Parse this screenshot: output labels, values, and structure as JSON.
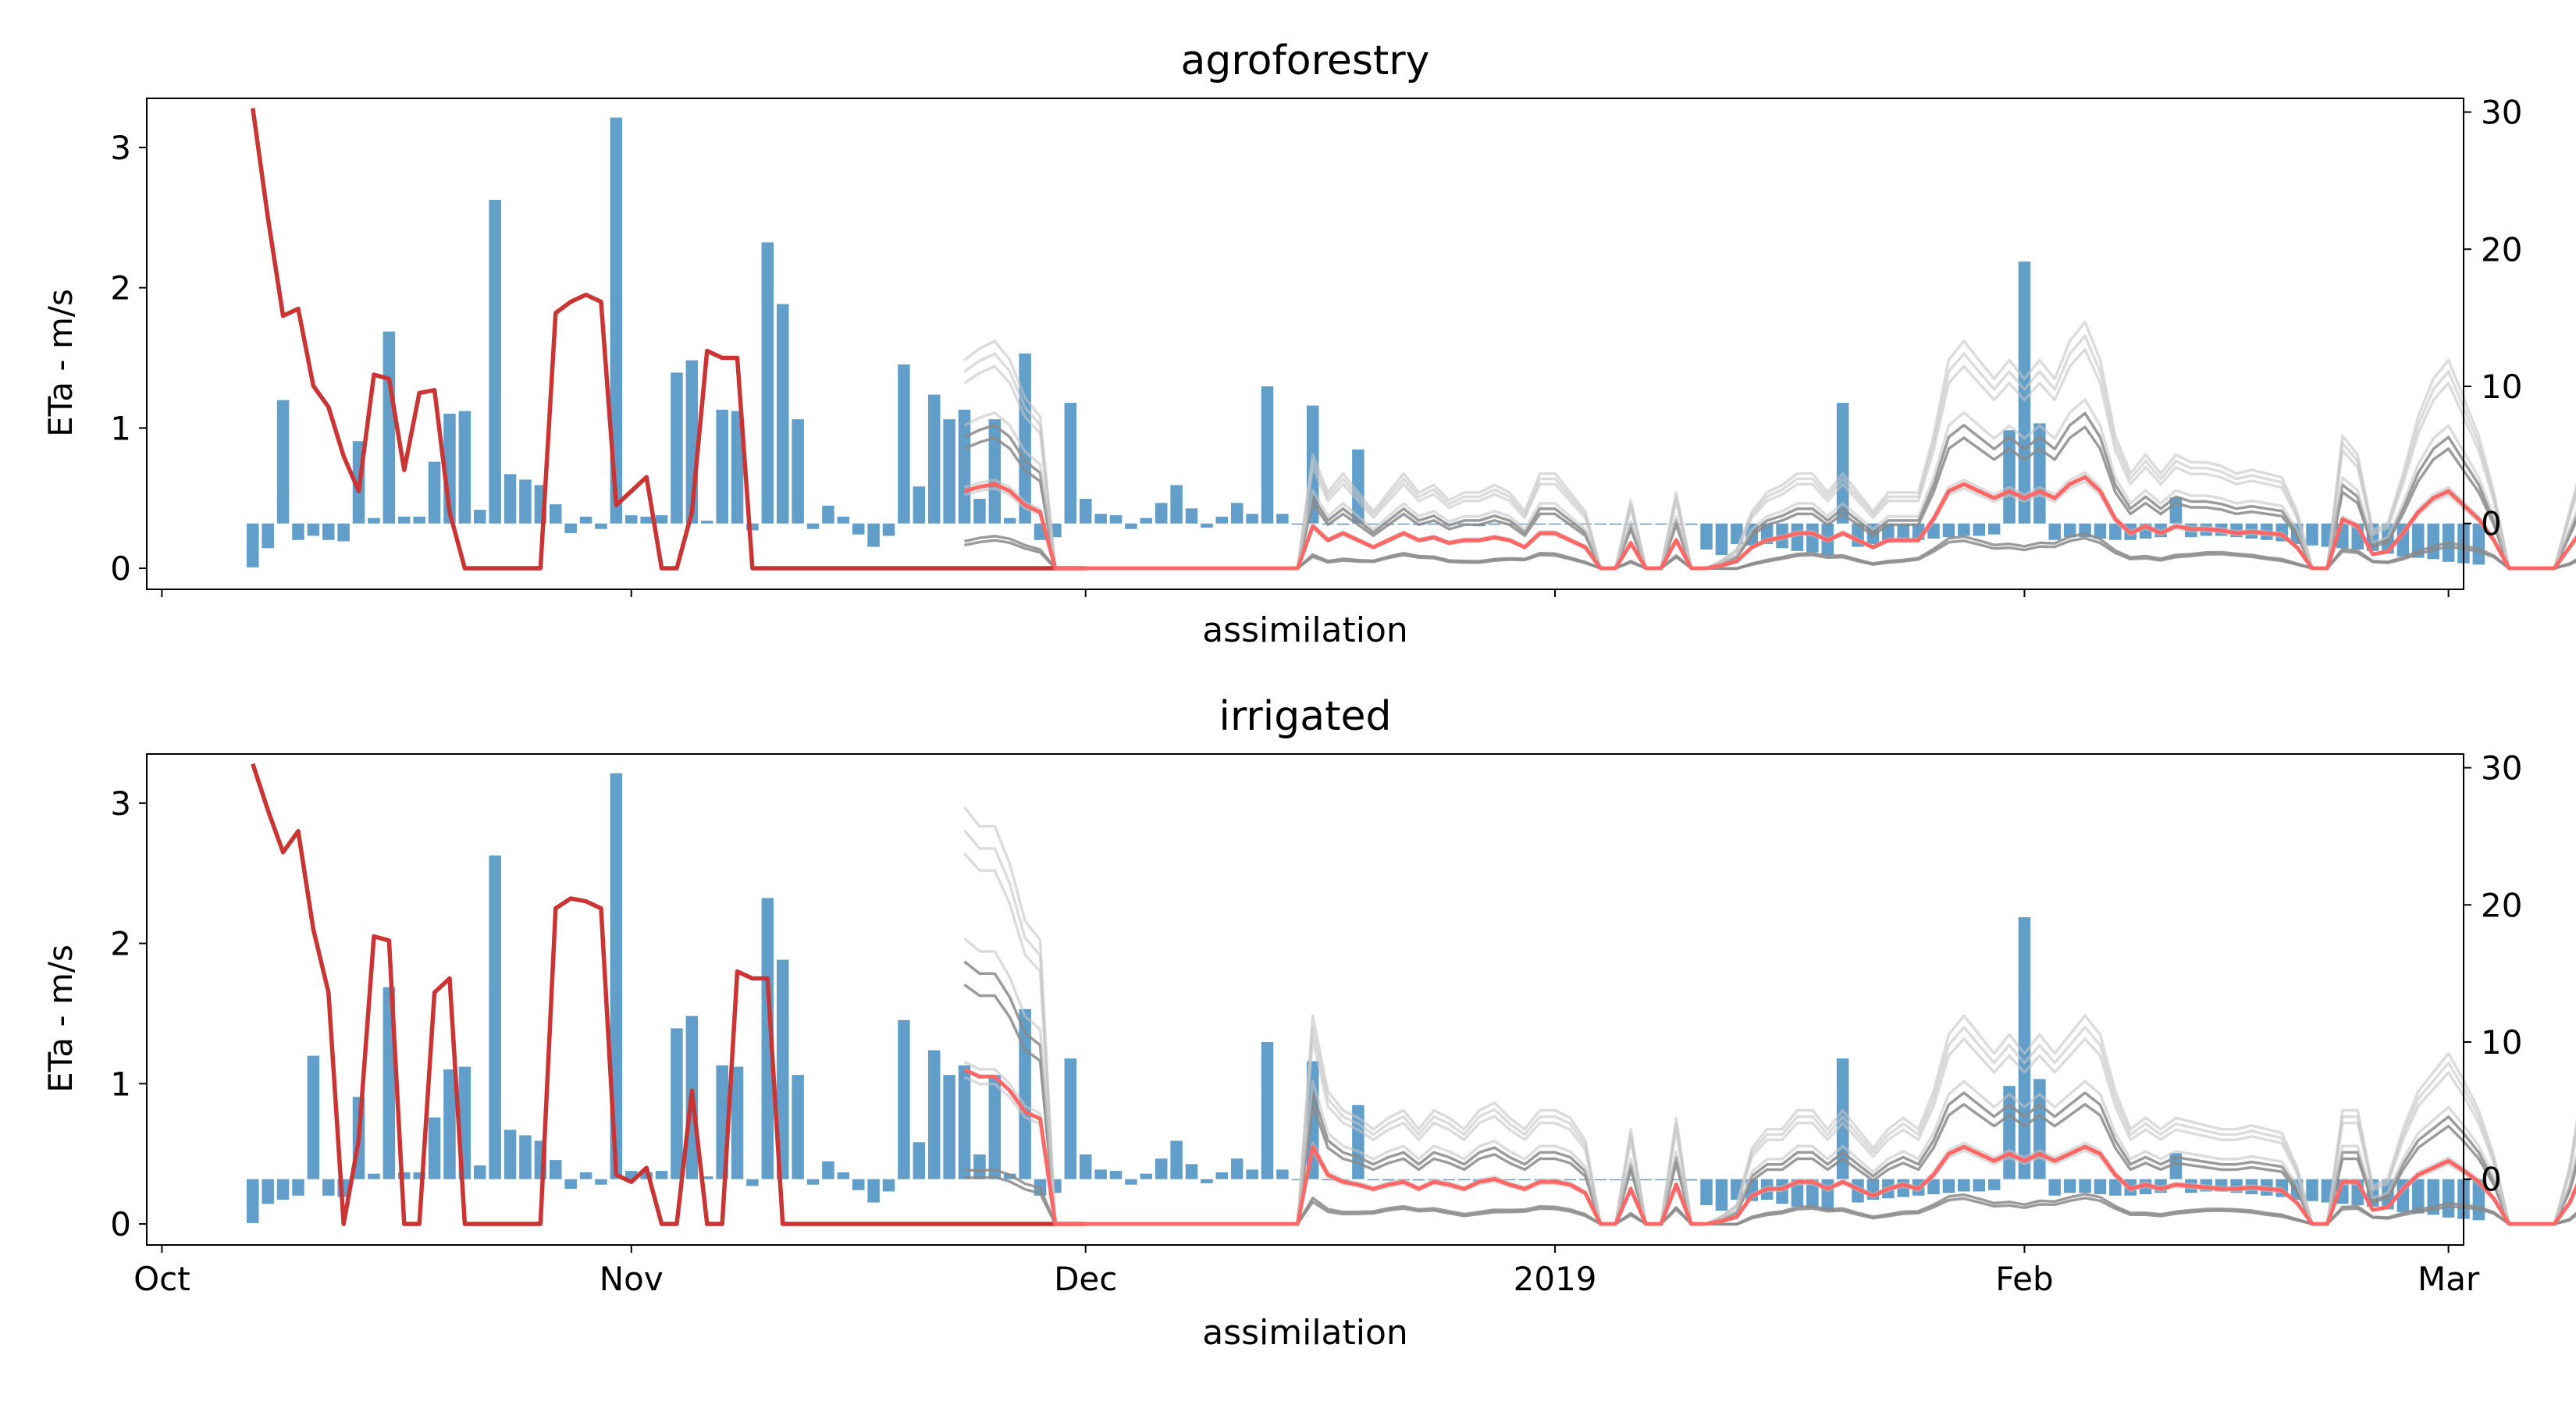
{
  "figure": {
    "background": "#ffffff"
  },
  "chart_data": [
    {
      "type": "line",
      "title": "agroforestry",
      "xlabel": "assimilation",
      "ylabel": "ETa - m/s",
      "ylim": [
        -0.15,
        3.35
      ],
      "yticks": [
        0,
        1,
        2,
        3
      ],
      "y2lim": [
        -4.8,
        31
      ],
      "y2ticks": [
        0,
        10,
        20,
        30
      ],
      "xlim": [
        "2018-09-30",
        "2019-03-02"
      ],
      "xticks": [
        {
          "date": "2018-10-01",
          "label": "Oct"
        },
        {
          "date": "2018-11-01",
          "label": "Nov"
        },
        {
          "date": "2018-12-01",
          "label": "Dec"
        },
        {
          "date": "2019-01-01",
          "label": "2019"
        },
        {
          "date": "2019-02-01",
          "label": "Feb"
        },
        {
          "date": "2019-03-01",
          "label": "Mar"
        }
      ],
      "show_xticklabels": false,
      "bar_color": "#1f77b4",
      "bar_opacity": 0.7,
      "bars": {
        "start": "2018-10-07",
        "values": [
          -3.2,
          -1.8,
          -1.5,
          -1.2,
          -0.9,
          -1.2,
          -1.3,
          -1.1,
          0.4,
          -1.0,
          -1.1,
          0.5,
          -0.2,
          -0.4,
          0.4,
          1.0,
          2.4,
          3.6,
          3.2,
          2.8,
          1.4,
          -0.7,
          0.5,
          -0.4,
          -0.3,
          0.6,
          0.5,
          0.6,
          -0.2,
          -0.4,
          0.2,
          0.0,
          -0.4,
          -0.5,
          -1.6,
          -0.2,
          -0.2,
          -0.4,
          1.3,
          0.5,
          -0.8,
          -1.7,
          -0.9,
          0.6,
          2.2,
          0.5,
          0.0,
          0.4,
          1.8,
          1.0,
          0.4,
          -1.4,
          -1.2,
          -1.0,
          2.3,
          1.8,
          0.7,
          0.6,
          -0.4,
          0.4,
          1.5,
          2.8,
          1.1,
          -0.3,
          0.5,
          1.5,
          0.7,
          1.4,
          0.7,
          0.0,
          -0.1,
          0.0,
          -0.1,
          0.0,
          0.0,
          -0.1,
          0.0,
          -0.1,
          0.0,
          0.0,
          0.0,
          -0.2,
          -0.1,
          0.0,
          0.0,
          0.0,
          0.0,
          0.0,
          0.0,
          0.0,
          0.0,
          -0.1,
          0.0,
          0.0,
          0.0,
          -0.1,
          -1.9,
          -2.3,
          -1.5,
          -1.6,
          -1.5,
          -1.8,
          -2.0,
          -2.1,
          -2.3,
          -2.0,
          -1.7,
          -1.5,
          -1.4,
          -1.3,
          -1.2,
          -1.1,
          -1.0,
          -0.9,
          -0.9,
          -0.8,
          -1.0,
          -1.2,
          -1.4,
          -1.2,
          -1.0,
          -1.0,
          -1.1,
          -1.2,
          -1.2,
          -1.1,
          -1.0,
          -1.0,
          -1.0,
          -0.9,
          -0.9,
          -1.0,
          -1.1,
          -1.2,
          -1.3,
          -1.5,
          -1.6,
          -1.7,
          -1.8,
          -1.9,
          -2.0,
          -2.2,
          -2.4,
          -2.5,
          -2.6,
          -2.8,
          -2.9,
          -3.0
        ]
      },
      "bar_overrides": [
        {
          "date": "2018-10-09",
          "value": 9.0
        },
        {
          "date": "2018-10-14",
          "value": 6.0
        },
        {
          "date": "2018-10-16",
          "value": 14.0
        },
        {
          "date": "2018-10-17",
          "value": 0.5
        },
        {
          "date": "2018-10-19",
          "value": 4.5
        },
        {
          "date": "2018-10-20",
          "value": 8.0
        },
        {
          "date": "2018-10-21",
          "value": 8.2
        },
        {
          "date": "2018-10-23",
          "value": 23.6
        },
        {
          "date": "2018-10-31",
          "value": 29.6
        },
        {
          "date": "2018-11-04",
          "value": 11.0
        },
        {
          "date": "2018-11-05",
          "value": 11.9
        },
        {
          "date": "2018-11-07",
          "value": 8.3
        },
        {
          "date": "2018-11-08",
          "value": 8.2
        },
        {
          "date": "2018-11-10",
          "value": 20.5
        },
        {
          "date": "2018-11-11",
          "value": 16.0
        },
        {
          "date": "2018-11-12",
          "value": 7.6
        },
        {
          "date": "2018-11-19",
          "value": 11.6
        },
        {
          "date": "2018-11-20",
          "value": 2.7
        },
        {
          "date": "2018-11-21",
          "value": 9.4
        },
        {
          "date": "2018-11-22",
          "value": 7.6
        },
        {
          "date": "2018-11-23",
          "value": 8.3
        },
        {
          "date": "2018-11-25",
          "value": 7.6
        },
        {
          "date": "2018-11-27",
          "value": 12.4
        },
        {
          "date": "2018-11-30",
          "value": 8.8
        },
        {
          "date": "2018-12-13",
          "value": 10.0
        },
        {
          "date": "2018-12-16",
          "value": 8.6
        },
        {
          "date": "2018-12-19",
          "value": 5.4
        },
        {
          "date": "2019-01-20",
          "value": 8.8
        },
        {
          "date": "2019-01-31",
          "value": 6.8
        },
        {
          "date": "2019-02-01",
          "value": 19.1
        },
        {
          "date": "2019-02-02",
          "value": 7.3
        },
        {
          "date": "2019-02-11",
          "value": 1.9
        }
      ],
      "series": [
        {
          "name": "",
          "color": "#cc3333",
          "start": "2018-10-07",
          "values": [
            3.28,
            2.5,
            1.8,
            1.85,
            1.3,
            1.15,
            0.8,
            0.55,
            1.38,
            1.35,
            0.7,
            1.25,
            1.27,
            0.4,
            0.0,
            0.0,
            0.0,
            0.0,
            0.0,
            0.0,
            1.82,
            1.9,
            1.95,
            1.9,
            0.45,
            0.55,
            0.65,
            0.0,
            0.0,
            0.4,
            1.55,
            1.5,
            1.5,
            0.0,
            0.0,
            0.0,
            0.0,
            0.0,
            0.0,
            0.0,
            0.0,
            0.0,
            0.0,
            0.0,
            0.0,
            0.0,
            0.0,
            0.0,
            0.0,
            0.0,
            0.0,
            0.0,
            0.0,
            0.0,
            0.0,
            0.0
          ]
        },
        {
          "name": "",
          "color": "#ff6666",
          "start": "2018-11-23",
          "values": [
            0.55,
            0.58,
            0.6,
            0.55,
            0.45,
            0.4,
            0.0,
            0.0,
            0.0,
            0.0,
            0.0,
            0.0,
            0.0,
            0.0,
            0.0,
            0.0,
            0.0,
            0.0,
            0.0,
            0.0,
            0.0,
            0.0,
            0.0,
            0.3,
            0.2,
            0.25,
            0.2,
            0.15,
            0.2,
            0.25,
            0.2,
            0.22,
            0.18,
            0.2,
            0.2,
            0.22,
            0.2,
            0.15,
            0.25,
            0.25,
            0.2,
            0.15,
            0.0,
            0.0,
            0.18,
            0.0,
            0.0,
            0.2,
            0.0,
            0.0,
            0.02,
            0.05,
            0.15,
            0.2,
            0.22,
            0.25,
            0.25,
            0.2,
            0.25,
            0.2,
            0.15,
            0.2,
            0.2,
            0.2,
            0.35,
            0.55,
            0.6,
            0.55,
            0.5,
            0.55,
            0.5,
            0.55,
            0.5,
            0.6,
            0.65,
            0.55,
            0.35,
            0.25,
            0.3,
            0.25,
            0.3,
            0.28,
            0.28,
            0.27,
            0.25,
            0.26,
            0.25,
            0.24,
            0.15,
            0.0,
            0.0,
            0.35,
            0.3,
            0.1,
            0.12,
            0.25,
            0.4,
            0.5,
            0.55,
            0.45,
            0.35,
            0.2,
            0.0,
            0.0,
            0.0,
            0.0,
            0.15,
            0.3,
            0.35,
            0.35,
            0.33,
            0.35,
            0.34,
            0.33,
            0.0,
            0.28,
            0.42,
            0.4,
            0.4,
            0.42,
            0.43,
            0.42,
            0.4,
            0.35,
            0.1,
            0.3,
            0.5,
            0.55,
            0.5,
            0.6,
            0.68
          ]
        }
      ]
    },
    {
      "type": "line",
      "title": "irrigated",
      "xlabel": "assimilation",
      "ylabel": "ETa - m/s",
      "ylim": [
        -0.15,
        3.35
      ],
      "yticks": [
        0,
        1,
        2,
        3
      ],
      "y2lim": [
        -4.8,
        31
      ],
      "y2ticks": [
        0,
        10,
        20,
        30
      ],
      "xlim": [
        "2018-09-30",
        "2019-03-02"
      ],
      "xticks": [
        {
          "date": "2018-10-01",
          "label": "Oct"
        },
        {
          "date": "2018-11-01",
          "label": "Nov"
        },
        {
          "date": "2018-12-01",
          "label": "Dec"
        },
        {
          "date": "2019-01-01",
          "label": "2019"
        },
        {
          "date": "2019-02-01",
          "label": "Feb"
        },
        {
          "date": "2019-03-01",
          "label": "Mar"
        }
      ],
      "show_xticklabels": true,
      "bar_color": "#1f77b4",
      "bar_opacity": 0.7,
      "bars": {
        "start": "2018-10-07",
        "values": [
          -3.2,
          -1.8,
          -1.5,
          -1.2,
          -0.9,
          -1.2,
          -1.3,
          -1.1,
          0.4,
          -1.0,
          -1.1,
          0.5,
          -0.2,
          -0.4,
          0.4,
          1.0,
          2.4,
          3.6,
          3.2,
          2.8,
          1.4,
          -0.7,
          0.5,
          -0.4,
          -0.3,
          0.6,
          0.5,
          0.6,
          -0.2,
          -0.4,
          0.2,
          0.0,
          -0.4,
          -0.5,
          -1.6,
          -0.2,
          -0.2,
          -0.4,
          1.3,
          0.5,
          -0.8,
          -1.7,
          -0.9,
          0.6,
          2.2,
          0.5,
          0.0,
          0.4,
          1.8,
          1.0,
          0.4,
          -1.4,
          -1.2,
          -1.0,
          2.3,
          1.8,
          0.7,
          0.6,
          -0.4,
          0.4,
          1.5,
          2.8,
          1.1,
          -0.3,
          0.5,
          1.5,
          0.7,
          1.4,
          0.7,
          0.0,
          -0.1,
          0.0,
          -0.1,
          0.0,
          0.0,
          -0.1,
          0.0,
          -0.1,
          0.0,
          0.0,
          0.0,
          -0.2,
          -0.1,
          0.0,
          0.0,
          0.0,
          0.0,
          0.0,
          0.0,
          0.0,
          0.0,
          -0.1,
          0.0,
          0.0,
          0.0,
          -0.1,
          -1.9,
          -2.3,
          -1.5,
          -1.6,
          -1.5,
          -1.8,
          -2.0,
          -2.1,
          -2.3,
          -2.0,
          -1.7,
          -1.5,
          -1.4,
          -1.3,
          -1.2,
          -1.1,
          -1.0,
          -0.9,
          -0.9,
          -0.8,
          -1.0,
          -1.2,
          -1.4,
          -1.2,
          -1.0,
          -1.0,
          -1.1,
          -1.2,
          -1.2,
          -1.1,
          -1.0,
          -1.0,
          -1.0,
          -0.9,
          -0.9,
          -1.0,
          -1.1,
          -1.2,
          -1.3,
          -1.5,
          -1.6,
          -1.7,
          -1.8,
          -1.9,
          -2.0,
          -2.2,
          -2.4,
          -2.5,
          -2.6,
          -2.8,
          -2.9,
          -3.0
        ]
      },
      "bar_overrides": [
        {
          "date": "2018-10-11",
          "value": 9.0
        },
        {
          "date": "2018-10-14",
          "value": 6.0
        },
        {
          "date": "2018-10-16",
          "value": 14.0
        },
        {
          "date": "2018-10-17",
          "value": 0.5
        },
        {
          "date": "2018-10-19",
          "value": 4.5
        },
        {
          "date": "2018-10-20",
          "value": 8.0
        },
        {
          "date": "2018-10-21",
          "value": 8.2
        },
        {
          "date": "2018-10-23",
          "value": 23.6
        },
        {
          "date": "2018-10-31",
          "value": 29.6
        },
        {
          "date": "2018-11-04",
          "value": 11.0
        },
        {
          "date": "2018-11-05",
          "value": 11.9
        },
        {
          "date": "2018-11-07",
          "value": 8.3
        },
        {
          "date": "2018-11-08",
          "value": 8.2
        },
        {
          "date": "2018-11-10",
          "value": 20.5
        },
        {
          "date": "2018-11-11",
          "value": 16.0
        },
        {
          "date": "2018-11-12",
          "value": 7.6
        },
        {
          "date": "2018-11-19",
          "value": 11.6
        },
        {
          "date": "2018-11-20",
          "value": 2.7
        },
        {
          "date": "2018-11-21",
          "value": 9.4
        },
        {
          "date": "2018-11-22",
          "value": 7.6
        },
        {
          "date": "2018-11-23",
          "value": 8.3
        },
        {
          "date": "2018-11-25",
          "value": 7.6
        },
        {
          "date": "2018-11-27",
          "value": 12.4
        },
        {
          "date": "2018-11-30",
          "value": 8.8
        },
        {
          "date": "2018-12-13",
          "value": 10.0
        },
        {
          "date": "2018-12-16",
          "value": 8.6
        },
        {
          "date": "2018-12-19",
          "value": 5.4
        },
        {
          "date": "2019-01-20",
          "value": 8.8
        },
        {
          "date": "2019-01-31",
          "value": 6.8
        },
        {
          "date": "2019-02-01",
          "value": 19.1
        },
        {
          "date": "2019-02-02",
          "value": 7.3
        },
        {
          "date": "2019-02-11",
          "value": 1.9
        }
      ],
      "series": [
        {
          "name": "",
          "color": "#cc3333",
          "start": "2018-10-07",
          "values": [
            3.28,
            2.95,
            2.65,
            2.8,
            2.1,
            1.65,
            0.0,
            0.6,
            2.05,
            2.02,
            0.0,
            0.0,
            1.65,
            1.75,
            0.0,
            0.0,
            0.0,
            0.0,
            0.0,
            0.0,
            2.25,
            2.32,
            2.3,
            2.25,
            0.35,
            0.3,
            0.4,
            0.0,
            0.0,
            0.95,
            0.0,
            0.0,
            1.8,
            1.75,
            1.75,
            0.0,
            0.0,
            0.0,
            0.0,
            0.0,
            0.0,
            0.0,
            0.0,
            0.0,
            0.0,
            0.0,
            0.0,
            0.0,
            0.0,
            0.0,
            0.0,
            0.0,
            0.0,
            0.0,
            0.0,
            0.0
          ]
        },
        {
          "name": "",
          "color": "#ff6666",
          "start": "2018-11-23",
          "values": [
            1.1,
            1.05,
            1.05,
            0.95,
            0.8,
            0.75,
            0.0,
            0.0,
            0.0,
            0.0,
            0.0,
            0.0,
            0.0,
            0.0,
            0.0,
            0.0,
            0.0,
            0.0,
            0.0,
            0.0,
            0.0,
            0.0,
            0.0,
            0.55,
            0.35,
            0.3,
            0.28,
            0.25,
            0.28,
            0.3,
            0.25,
            0.3,
            0.28,
            0.25,
            0.3,
            0.32,
            0.28,
            0.25,
            0.3,
            0.3,
            0.28,
            0.22,
            0.0,
            0.0,
            0.25,
            0.0,
            0.0,
            0.28,
            0.0,
            0.0,
            0.02,
            0.05,
            0.2,
            0.25,
            0.25,
            0.3,
            0.3,
            0.25,
            0.3,
            0.25,
            0.2,
            0.25,
            0.28,
            0.25,
            0.35,
            0.5,
            0.55,
            0.5,
            0.45,
            0.5,
            0.45,
            0.5,
            0.45,
            0.5,
            0.55,
            0.5,
            0.35,
            0.25,
            0.28,
            0.25,
            0.28,
            0.27,
            0.26,
            0.25,
            0.25,
            0.26,
            0.25,
            0.24,
            0.15,
            0.0,
            0.0,
            0.3,
            0.3,
            0.1,
            0.12,
            0.25,
            0.35,
            0.4,
            0.45,
            0.38,
            0.3,
            0.18,
            0.0,
            0.0,
            0.0,
            0.0,
            0.15,
            0.4,
            0.55,
            0.55,
            0.52,
            0.55,
            0.54,
            0.52,
            0.0,
            0.35,
            0.55,
            0.5,
            0.5,
            0.52,
            0.55,
            0.55,
            0.5,
            0.45,
            0.1,
            0.35,
            0.62,
            0.65,
            0.62,
            0.72,
            0.83
          ]
        }
      ]
    }
  ]
}
